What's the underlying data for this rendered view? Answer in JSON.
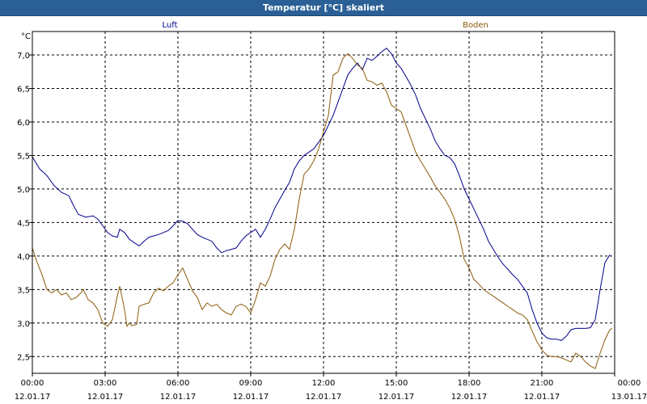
{
  "window": {
    "title": "Temperatur [°C] skaliert"
  },
  "chart_data": {
    "type": "line",
    "ylabel": "°C",
    "ylim": [
      2.25,
      7.35
    ],
    "y_ticks": [
      "2,5",
      "3,0",
      "3,5",
      "4,0",
      "4,5",
      "5,0",
      "5,5",
      "6,0",
      "6,5",
      "7,0"
    ],
    "y_tick_values": [
      2.5,
      3.0,
      3.5,
      4.0,
      4.5,
      5.0,
      5.5,
      6.0,
      6.5,
      7.0
    ],
    "xlim": [
      0,
      24
    ],
    "x_tick_values": [
      0,
      3,
      6,
      9,
      12,
      15,
      18,
      21,
      24
    ],
    "x_ticks": [
      {
        "time": "00:00",
        "date": "12.01.17"
      },
      {
        "time": "03:00",
        "date": "12.01.17"
      },
      {
        "time": "06:00",
        "date": "12.01.17"
      },
      {
        "time": "09:00",
        "date": "12.01.17"
      },
      {
        "time": "12:00",
        "date": "12.01.17"
      },
      {
        "time": "15:00",
        "date": "12.01.17"
      },
      {
        "time": "18:00",
        "date": "12.01.17"
      },
      {
        "time": "21:00",
        "date": "12.01.17"
      },
      {
        "time": "00:00",
        "date": "13.01.17"
      }
    ],
    "grid": true,
    "series": [
      {
        "name": "Luft",
        "color": "#00008b",
        "points": [
          [
            0.0,
            5.48
          ],
          [
            0.3,
            5.3
          ],
          [
            0.6,
            5.2
          ],
          [
            0.9,
            5.05
          ],
          [
            1.2,
            4.95
          ],
          [
            1.5,
            4.9
          ],
          [
            1.7,
            4.75
          ],
          [
            1.9,
            4.62
          ],
          [
            2.2,
            4.58
          ],
          [
            2.5,
            4.6
          ],
          [
            2.7,
            4.55
          ],
          [
            2.9,
            4.45
          ],
          [
            3.1,
            4.35
          ],
          [
            3.3,
            4.3
          ],
          [
            3.5,
            4.28
          ],
          [
            3.6,
            4.4
          ],
          [
            3.8,
            4.35
          ],
          [
            4.0,
            4.25
          ],
          [
            4.2,
            4.2
          ],
          [
            4.4,
            4.15
          ],
          [
            4.6,
            4.22
          ],
          [
            4.8,
            4.28
          ],
          [
            5.0,
            4.3
          ],
          [
            5.2,
            4.32
          ],
          [
            5.4,
            4.35
          ],
          [
            5.6,
            4.38
          ],
          [
            5.8,
            4.45
          ],
          [
            6.0,
            4.53
          ],
          [
            6.2,
            4.52
          ],
          [
            6.4,
            4.48
          ],
          [
            6.6,
            4.4
          ],
          [
            6.8,
            4.32
          ],
          [
            7.0,
            4.28
          ],
          [
            7.2,
            4.25
          ],
          [
            7.4,
            4.22
          ],
          [
            7.6,
            4.12
          ],
          [
            7.8,
            4.05
          ],
          [
            8.0,
            4.08
          ],
          [
            8.2,
            4.1
          ],
          [
            8.4,
            4.12
          ],
          [
            8.6,
            4.22
          ],
          [
            8.8,
            4.3
          ],
          [
            9.0,
            4.35
          ],
          [
            9.2,
            4.4
          ],
          [
            9.4,
            4.28
          ],
          [
            9.6,
            4.4
          ],
          [
            9.8,
            4.55
          ],
          [
            10.0,
            4.72
          ],
          [
            10.2,
            4.85
          ],
          [
            10.4,
            4.98
          ],
          [
            10.6,
            5.1
          ],
          [
            10.8,
            5.3
          ],
          [
            11.0,
            5.42
          ],
          [
            11.2,
            5.5
          ],
          [
            11.4,
            5.55
          ],
          [
            11.6,
            5.6
          ],
          [
            11.8,
            5.7
          ],
          [
            12.0,
            5.8
          ],
          [
            12.2,
            5.95
          ],
          [
            12.4,
            6.1
          ],
          [
            12.6,
            6.3
          ],
          [
            12.8,
            6.5
          ],
          [
            13.0,
            6.7
          ],
          [
            13.2,
            6.8
          ],
          [
            13.4,
            6.88
          ],
          [
            13.6,
            6.78
          ],
          [
            13.8,
            6.95
          ],
          [
            14.0,
            6.92
          ],
          [
            14.2,
            6.98
          ],
          [
            14.4,
            7.05
          ],
          [
            14.6,
            7.1
          ],
          [
            14.8,
            7.02
          ],
          [
            15.0,
            6.88
          ],
          [
            15.2,
            6.8
          ],
          [
            15.4,
            6.68
          ],
          [
            15.6,
            6.55
          ],
          [
            15.8,
            6.4
          ],
          [
            16.0,
            6.2
          ],
          [
            16.2,
            6.05
          ],
          [
            16.4,
            5.9
          ],
          [
            16.6,
            5.72
          ],
          [
            16.8,
            5.6
          ],
          [
            17.0,
            5.5
          ],
          [
            17.2,
            5.47
          ],
          [
            17.4,
            5.38
          ],
          [
            17.6,
            5.2
          ],
          [
            17.8,
            5.0
          ],
          [
            18.0,
            4.85
          ],
          [
            18.2,
            4.7
          ],
          [
            18.4,
            4.55
          ],
          [
            18.6,
            4.4
          ],
          [
            18.8,
            4.22
          ],
          [
            19.0,
            4.1
          ],
          [
            19.2,
            3.98
          ],
          [
            19.4,
            3.88
          ],
          [
            19.6,
            3.8
          ],
          [
            19.8,
            3.72
          ],
          [
            20.0,
            3.65
          ],
          [
            20.2,
            3.55
          ],
          [
            20.4,
            3.45
          ],
          [
            20.6,
            3.2
          ],
          [
            20.8,
            3.0
          ],
          [
            21.0,
            2.85
          ],
          [
            21.2,
            2.78
          ],
          [
            21.4,
            2.76
          ],
          [
            21.6,
            2.76
          ],
          [
            21.8,
            2.74
          ],
          [
            22.0,
            2.8
          ],
          [
            22.2,
            2.9
          ],
          [
            22.4,
            2.92
          ],
          [
            22.6,
            2.92
          ],
          [
            22.8,
            2.92
          ],
          [
            23.0,
            2.93
          ],
          [
            23.2,
            3.05
          ],
          [
            23.4,
            3.5
          ],
          [
            23.6,
            3.9
          ],
          [
            23.8,
            4.02
          ]
        ]
      },
      {
        "name": "Boden",
        "color": "#8b5a0a",
        "points": [
          [
            0.0,
            4.12
          ],
          [
            0.2,
            3.9
          ],
          [
            0.4,
            3.72
          ],
          [
            0.6,
            3.5
          ],
          [
            0.8,
            3.45
          ],
          [
            1.0,
            3.5
          ],
          [
            1.2,
            3.42
          ],
          [
            1.4,
            3.45
          ],
          [
            1.6,
            3.35
          ],
          [
            1.8,
            3.38
          ],
          [
            2.0,
            3.45
          ],
          [
            2.1,
            3.5
          ],
          [
            2.3,
            3.35
          ],
          [
            2.5,
            3.3
          ],
          [
            2.7,
            3.2
          ],
          [
            2.9,
            3.0
          ],
          [
            3.1,
            2.95
          ],
          [
            3.3,
            3.05
          ],
          [
            3.5,
            3.4
          ],
          [
            3.6,
            3.55
          ],
          [
            3.8,
            3.2
          ],
          [
            3.9,
            2.95
          ],
          [
            4.0,
            3.0
          ],
          [
            4.1,
            2.96
          ],
          [
            4.3,
            2.98
          ],
          [
            4.4,
            3.25
          ],
          [
            4.6,
            3.28
          ],
          [
            4.8,
            3.3
          ],
          [
            5.0,
            3.45
          ],
          [
            5.2,
            3.52
          ],
          [
            5.4,
            3.48
          ],
          [
            5.6,
            3.55
          ],
          [
            5.8,
            3.6
          ],
          [
            6.0,
            3.72
          ],
          [
            6.2,
            3.82
          ],
          [
            6.4,
            3.65
          ],
          [
            6.6,
            3.48
          ],
          [
            6.8,
            3.38
          ],
          [
            7.0,
            3.2
          ],
          [
            7.2,
            3.3
          ],
          [
            7.4,
            3.25
          ],
          [
            7.6,
            3.28
          ],
          [
            7.8,
            3.2
          ],
          [
            8.0,
            3.15
          ],
          [
            8.2,
            3.12
          ],
          [
            8.4,
            3.25
          ],
          [
            8.6,
            3.28
          ],
          [
            8.8,
            3.25
          ],
          [
            9.0,
            3.15
          ],
          [
            9.2,
            3.35
          ],
          [
            9.4,
            3.6
          ],
          [
            9.6,
            3.55
          ],
          [
            9.8,
            3.7
          ],
          [
            10.0,
            3.95
          ],
          [
            10.2,
            4.1
          ],
          [
            10.4,
            4.18
          ],
          [
            10.6,
            4.1
          ],
          [
            10.8,
            4.4
          ],
          [
            11.0,
            4.85
          ],
          [
            11.2,
            5.22
          ],
          [
            11.4,
            5.3
          ],
          [
            11.6,
            5.42
          ],
          [
            11.8,
            5.6
          ],
          [
            12.0,
            5.85
          ],
          [
            12.2,
            6.1
          ],
          [
            12.4,
            6.7
          ],
          [
            12.6,
            6.75
          ],
          [
            12.8,
            6.95
          ],
          [
            13.0,
            7.02
          ],
          [
            13.2,
            6.95
          ],
          [
            13.4,
            6.85
          ],
          [
            13.6,
            6.8
          ],
          [
            13.8,
            6.62
          ],
          [
            14.0,
            6.6
          ],
          [
            14.2,
            6.55
          ],
          [
            14.4,
            6.58
          ],
          [
            14.6,
            6.45
          ],
          [
            14.8,
            6.25
          ],
          [
            15.0,
            6.2
          ],
          [
            15.2,
            6.15
          ],
          [
            15.4,
            5.95
          ],
          [
            15.6,
            5.75
          ],
          [
            15.8,
            5.55
          ],
          [
            16.0,
            5.42
          ],
          [
            16.2,
            5.3
          ],
          [
            16.4,
            5.18
          ],
          [
            16.6,
            5.05
          ],
          [
            16.8,
            4.95
          ],
          [
            17.0,
            4.85
          ],
          [
            17.2,
            4.72
          ],
          [
            17.4,
            4.55
          ],
          [
            17.6,
            4.3
          ],
          [
            17.8,
            3.95
          ],
          [
            18.0,
            3.82
          ],
          [
            18.2,
            3.65
          ],
          [
            18.4,
            3.58
          ],
          [
            18.6,
            3.5
          ],
          [
            18.8,
            3.45
          ],
          [
            19.0,
            3.4
          ],
          [
            19.2,
            3.35
          ],
          [
            19.4,
            3.3
          ],
          [
            19.6,
            3.25
          ],
          [
            19.8,
            3.2
          ],
          [
            20.0,
            3.15
          ],
          [
            20.2,
            3.12
          ],
          [
            20.4,
            3.05
          ],
          [
            20.6,
            2.88
          ],
          [
            20.8,
            2.72
          ],
          [
            21.0,
            2.6
          ],
          [
            21.2,
            2.52
          ],
          [
            21.4,
            2.5
          ],
          [
            21.6,
            2.5
          ],
          [
            21.8,
            2.48
          ],
          [
            22.0,
            2.45
          ],
          [
            22.2,
            2.42
          ],
          [
            22.4,
            2.55
          ],
          [
            22.6,
            2.5
          ],
          [
            22.8,
            2.42
          ],
          [
            23.0,
            2.36
          ],
          [
            23.2,
            2.32
          ],
          [
            23.4,
            2.55
          ],
          [
            23.6,
            2.75
          ],
          [
            23.8,
            2.9
          ],
          [
            23.9,
            2.92
          ]
        ]
      }
    ]
  }
}
